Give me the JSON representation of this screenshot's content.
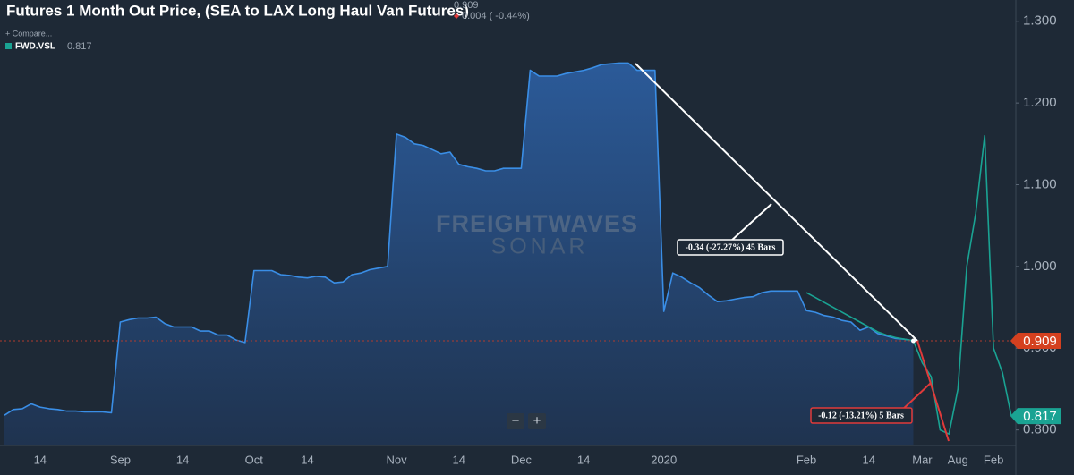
{
  "chart_data": {
    "type": "area",
    "title": "Futures 1 Month Out Price, (SEA to LAX Long Haul Van Futures)",
    "header_value": "0.909",
    "header_change": "0.004 ( -0.44%)",
    "compare": "+ Compare...",
    "watermark": [
      "FREIGHTWAVES",
      "SONAR"
    ],
    "zoom_buttons": [
      "−",
      "+"
    ],
    "annotations": [
      "-0.34 (-27.27%) 45 Bars",
      "-0.12 (-13.21%) 5 Bars"
    ],
    "grid": false,
    "ylim": [
      0.781,
      1.326
    ],
    "yticks": [
      {
        "value": 0.8,
        "label": "0.800"
      },
      {
        "value": 0.9,
        "label": "0.900"
      },
      {
        "value": 1.0,
        "label": "1.000"
      },
      {
        "value": 1.1,
        "label": "1.100"
      },
      {
        "value": 1.2,
        "label": "1.200"
      },
      {
        "value": 1.3,
        "label": "1.300"
      }
    ],
    "categories": [
      null,
      null,
      null,
      null,
      "14",
      null,
      null,
      null,
      null,
      null,
      null,
      null,
      null,
      "Sep",
      null,
      null,
      null,
      null,
      null,
      null,
      "14",
      null,
      null,
      null,
      null,
      null,
      null,
      null,
      "Oct",
      null,
      null,
      null,
      null,
      null,
      "14",
      null,
      null,
      null,
      null,
      null,
      null,
      null,
      null,
      null,
      "Nov",
      null,
      null,
      null,
      null,
      null,
      null,
      "14",
      null,
      null,
      null,
      null,
      null,
      null,
      "Dec",
      null,
      null,
      null,
      null,
      null,
      null,
      "14",
      null,
      null,
      null,
      null,
      null,
      null,
      null,
      null,
      "2020",
      null,
      null,
      null,
      null,
      null,
      null,
      null,
      null,
      null,
      null,
      null,
      null,
      null,
      null,
      null,
      "Feb",
      null,
      null,
      null,
      null,
      null,
      null,
      "14",
      null,
      null,
      null,
      null,
      null,
      "Mar",
      null,
      null,
      null,
      "Aug",
      null,
      null,
      null,
      "Feb",
      null,
      null
    ],
    "series": [
      {
        "color": "#3a8ee6",
        "values": [
          0.818,
          0.825,
          0.826,
          0.832,
          0.828,
          0.826,
          0.825,
          0.823,
          0.823,
          0.822,
          0.822,
          0.822,
          0.821,
          0.932,
          0.935,
          0.937,
          0.937,
          0.938,
          0.93,
          0.926,
          0.926,
          0.926,
          0.921,
          0.921,
          0.916,
          0.916,
          0.91,
          0.907,
          0.995,
          0.995,
          0.995,
          0.99,
          0.989,
          0.987,
          0.986,
          0.988,
          0.987,
          0.98,
          0.981,
          0.99,
          0.992,
          0.996,
          0.998,
          1.0,
          1.162,
          1.158,
          1.15,
          1.148,
          1.143,
          1.138,
          1.14,
          1.125,
          1.122,
          1.12,
          1.117,
          1.117,
          1.12,
          1.12,
          1.12,
          1.24,
          1.233,
          1.233,
          1.233,
          1.236,
          1.238,
          1.24,
          1.243,
          1.247,
          1.248,
          1.249,
          1.249,
          1.24,
          1.24,
          1.24,
          0.945,
          0.992,
          0.987,
          0.98,
          0.974,
          0.965,
          0.957,
          0.958,
          0.96,
          0.962,
          0.963,
          0.968,
          0.97,
          0.97,
          0.97,
          0.97,
          0.946,
          0.944,
          0.94,
          0.938,
          0.934,
          0.932,
          0.922,
          0.926,
          0.918,
          0.915,
          0.912,
          0.911,
          0.909,
          null,
          null,
          null,
          null,
          null,
          null,
          null,
          null,
          null,
          null,
          null
        ]
      },
      {
        "name": "FWD.VSL",
        "color": "#1aa393",
        "values": [
          null,
          null,
          null,
          null,
          null,
          null,
          null,
          null,
          null,
          null,
          null,
          null,
          null,
          null,
          null,
          null,
          null,
          null,
          null,
          null,
          null,
          null,
          null,
          null,
          null,
          null,
          null,
          null,
          null,
          null,
          null,
          null,
          null,
          null,
          null,
          null,
          null,
          null,
          null,
          null,
          null,
          null,
          null,
          null,
          null,
          null,
          null,
          null,
          null,
          null,
          null,
          null,
          null,
          null,
          null,
          null,
          null,
          null,
          null,
          null,
          null,
          null,
          null,
          null,
          null,
          null,
          null,
          null,
          null,
          null,
          null,
          null,
          null,
          null,
          null,
          null,
          null,
          null,
          null,
          null,
          null,
          null,
          null,
          null,
          null,
          null,
          null,
          null,
          null,
          null,
          0.968,
          0.962,
          0.956,
          0.95,
          0.944,
          0.938,
          0.932,
          0.926,
          0.92,
          0.916,
          0.913,
          0.911,
          0.909,
          0.882,
          0.865,
          0.8,
          0.795,
          0.85,
          1.0,
          1.065,
          1.16,
          0.9,
          0.87,
          0.817
        ]
      }
    ]
  }
}
